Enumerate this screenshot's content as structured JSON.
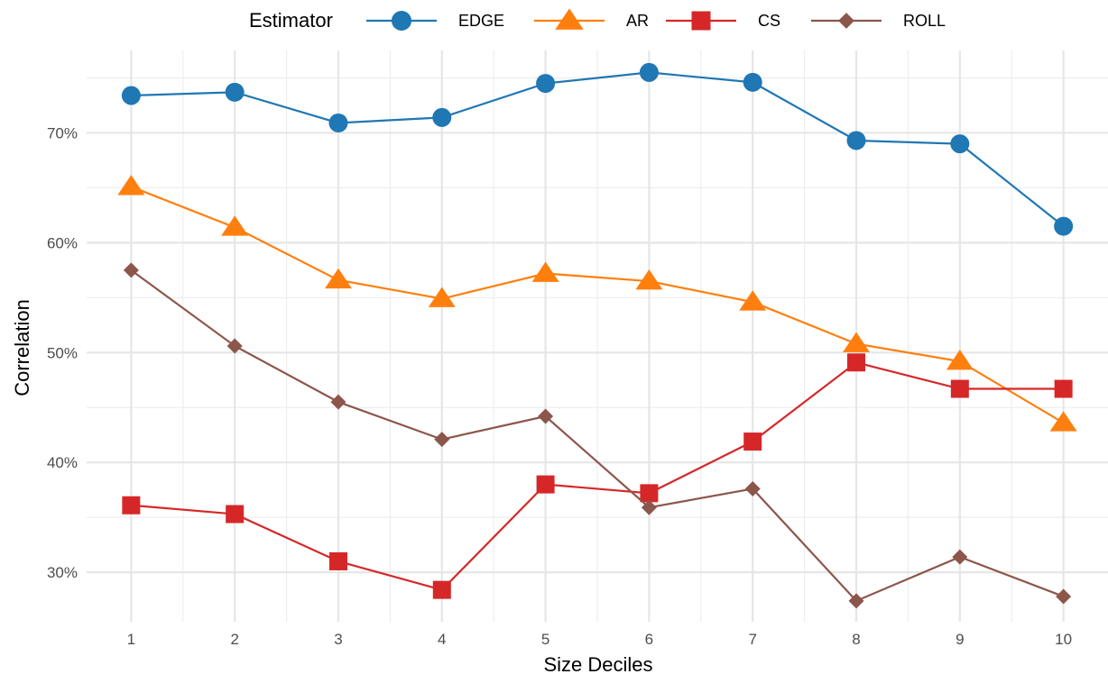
{
  "chart_data": {
    "type": "line",
    "title": "",
    "xlabel": "Size Deciles",
    "ylabel": "Correlation",
    "x": [
      1,
      2,
      3,
      4,
      5,
      6,
      7,
      8,
      9,
      10
    ],
    "x_tick_labels": [
      "1",
      "2",
      "3",
      "4",
      "5",
      "6",
      "7",
      "8",
      "9",
      "10"
    ],
    "y_ticks": [
      0.3,
      0.4,
      0.5,
      0.6,
      0.7
    ],
    "y_tick_labels": [
      "30%",
      "40%",
      "50%",
      "60%",
      "70%"
    ],
    "ylim": [
      0.255,
      0.775
    ],
    "xlim": [
      0.57,
      10.43
    ],
    "grid": true,
    "legend": {
      "title": "Estimator",
      "position": "top"
    },
    "series": [
      {
        "name": "EDGE",
        "color": "#1f77b4",
        "marker": "circle",
        "values": [
          0.734,
          0.737,
          0.709,
          0.714,
          0.745,
          0.755,
          0.746,
          0.693,
          0.69,
          0.615
        ]
      },
      {
        "name": "AR",
        "color": "#ff7f0e",
        "marker": "triangle",
        "values": [
          0.651,
          0.614,
          0.566,
          0.549,
          0.572,
          0.565,
          0.546,
          0.508,
          0.492,
          0.436
        ]
      },
      {
        "name": "CS",
        "color": "#d62728",
        "marker": "square",
        "values": [
          0.361,
          0.353,
          0.31,
          0.284,
          0.38,
          0.372,
          0.419,
          0.491,
          0.467,
          0.467
        ]
      },
      {
        "name": "ROLL",
        "color": "#8c564b",
        "marker": "diamond",
        "values": [
          0.575,
          0.506,
          0.455,
          0.421,
          0.442,
          0.359,
          0.376,
          0.274,
          0.314,
          0.278
        ]
      }
    ]
  }
}
